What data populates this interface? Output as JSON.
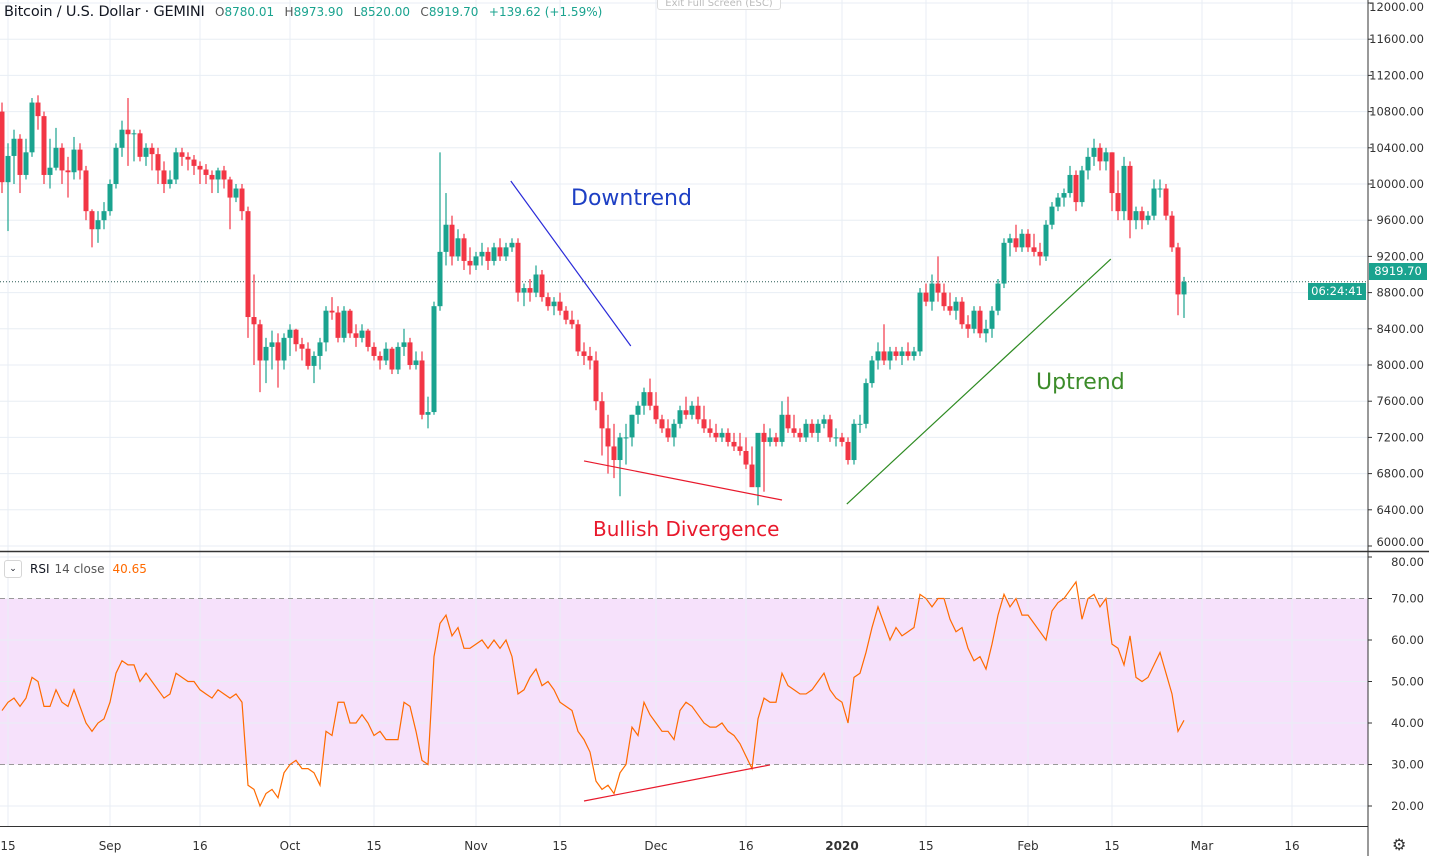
{
  "header": {
    "symbol": "Bitcoin / U.S. Dollar · GEMINI",
    "o_label": "O",
    "o_value": "8780.01",
    "h_label": "H",
    "h_value": "8973.90",
    "l_label": "L",
    "l_value": "8520.00",
    "c_label": "C",
    "c_value": "8919.70",
    "change": "+139.62 (+1.59%)"
  },
  "exit_fullscreen_label": "Exit Full Screen (ESC)",
  "price_tag": "8919.70",
  "countdown_tag": "06:24:41",
  "rsi_legend": {
    "name": "RSI",
    "params": "14 close",
    "value": "40.65"
  },
  "annotations": {
    "downtrend": "Downtrend",
    "bullish_divergence": "Bullish Divergence",
    "uptrend": "Uptrend"
  },
  "colors": {
    "up": "#1aa38f",
    "down": "#f23645",
    "rsi_line": "#ff6a00",
    "rsi_band": "#f6e1fb",
    "downtrend": "#2b2bd9",
    "divergence": "#e8192c",
    "uptrend": "#2e8b22",
    "grid": "#e8eef4"
  },
  "icons": {
    "rsi_collapse": "chevron-down-icon",
    "settings": "gear-icon"
  },
  "chart_data": [
    {
      "type": "candlestick",
      "interval": "1D",
      "first_date": "2019-08-14",
      "ylim": [
        6000,
        12000
      ],
      "y_ticks": [
        "6000.00",
        "6400.00",
        "6800.00",
        "7200.00",
        "7600.00",
        "8000.00",
        "8400.00",
        "8800.00",
        "9200.00",
        "9600.00",
        "10000.00",
        "10400.00",
        "10800.00",
        "11200.00",
        "11600.00",
        "12000.00"
      ],
      "current_price": 8919.7,
      "x_ticks": [
        {
          "label": "15",
          "date": "2019-08-15"
        },
        {
          "label": "Sep",
          "date": "2019-09-01"
        },
        {
          "label": "16",
          "date": "2019-09-16"
        },
        {
          "label": "Oct",
          "date": "2019-10-01"
        },
        {
          "label": "15",
          "date": "2019-10-15"
        },
        {
          "label": "Nov",
          "date": "2019-11-01"
        },
        {
          "label": "15",
          "date": "2019-11-15"
        },
        {
          "label": "Dec",
          "date": "2019-12-01"
        },
        {
          "label": "16",
          "date": "2019-12-16"
        },
        {
          "label": "2020",
          "date": "2020-01-01"
        },
        {
          "label": "15",
          "date": "2020-01-15"
        },
        {
          "label": "Feb",
          "date": "2020-02-01"
        },
        {
          "label": "15",
          "date": "2020-02-15"
        },
        {
          "label": "Mar",
          "date": "2020-03-01"
        },
        {
          "label": "16",
          "date": "2020-03-16"
        }
      ],
      "first_open": 10800,
      "close": [
        10020,
        10310,
        10500,
        10100,
        10350,
        10900,
        10750,
        10100,
        10180,
        10400,
        10150,
        10130,
        10380,
        10150,
        9700,
        9500,
        9600,
        9700,
        10000,
        10400,
        10600,
        10550,
        10560,
        10300,
        10400,
        10330,
        10150,
        10000,
        10050,
        10350,
        10300,
        10270,
        10200,
        10160,
        10100,
        10050,
        10150,
        10050,
        9850,
        9950,
        9700,
        8530,
        8450,
        8050,
        8200,
        8250,
        8050,
        8300,
        8390,
        8230,
        8180,
        7990,
        8100,
        8250,
        8600,
        8580,
        8300,
        8600,
        8350,
        8300,
        8380,
        8200,
        8100,
        8050,
        8180,
        7950,
        8200,
        8250,
        8000,
        8050,
        7450,
        7480,
        8650,
        9250,
        9550,
        9200,
        9400,
        9150,
        9100,
        9200,
        9250,
        9150,
        9300,
        9200,
        9300,
        9350,
        8800,
        8850,
        8800,
        9000,
        8750,
        8650,
        8700,
        8600,
        8500,
        8450,
        8150,
        8100,
        8050,
        7600,
        7300,
        7100,
        6950,
        7200,
        7200,
        7450,
        7550,
        7700,
        7550,
        7400,
        7300,
        7200,
        7350,
        7500,
        7450,
        7550,
        7400,
        7300,
        7250,
        7200,
        7250,
        7150,
        7100,
        7050,
        6900,
        6650,
        7250,
        7150,
        7200,
        7150,
        7450,
        7300,
        7250,
        7200,
        7350,
        7250,
        7350,
        7400,
        7200,
        7200,
        7150,
        6950,
        7350,
        7350,
        7800,
        8050,
        8150,
        8050,
        8150,
        8100,
        8150,
        8100,
        8150,
        8800,
        8700,
        8900,
        8800,
        8650,
        8600,
        8700,
        8450,
        8400,
        8600,
        8350,
        8400,
        8600,
        8900,
        9350,
        9400,
        9300,
        9450,
        9300,
        9250,
        9200,
        9550,
        9750,
        9850,
        9900,
        10100,
        9800,
        10150,
        10300,
        10400,
        10250,
        10350,
        9900,
        9700,
        10200,
        9600,
        9700,
        9600,
        9650,
        9950,
        9950,
        9650,
        9300,
        8780,
        8919.7
      ],
      "high": [
        10900,
        10450,
        10600,
        10550,
        10500,
        10950,
        10980,
        10800,
        10500,
        10620,
        10450,
        10300,
        10520,
        10450,
        10200,
        9720,
        9700,
        9800,
        10050,
        10450,
        10700,
        10950,
        10600,
        10600,
        10450,
        10450,
        10400,
        10250,
        10150,
        10400,
        10400,
        10350,
        10320,
        10250,
        10220,
        10150,
        10180,
        10200,
        10080,
        10000,
        10000,
        9750,
        9000,
        8500,
        8300,
        8380,
        8350,
        8350,
        8450,
        8400,
        8300,
        8250,
        8150,
        8300,
        8650,
        8750,
        8650,
        8650,
        8620,
        8450,
        8450,
        8400,
        8250,
        8150,
        8250,
        8200,
        8250,
        8400,
        8300,
        8150,
        8150,
        7650,
        8700,
        10350,
        9900,
        9650,
        9500,
        9450,
        9300,
        9250,
        9350,
        9300,
        9350,
        9400,
        9350,
        9400,
        9400,
        8900,
        8950,
        9100,
        9050,
        8800,
        8750,
        8800,
        8650,
        8600,
        8500,
        8250,
        8200,
        8150,
        7700,
        7450,
        7350,
        7250,
        7350,
        7450,
        7600,
        7750,
        7850,
        7700,
        7450,
        7400,
        7400,
        7550,
        7650,
        7600,
        7650,
        7550,
        7400,
        7350,
        7300,
        7300,
        7250,
        7250,
        7200,
        7100,
        6950,
        7350,
        7300,
        7250,
        7600,
        7650,
        7450,
        7300,
        7400,
        7400,
        7400,
        7450,
        7450,
        7300,
        7250,
        7200,
        7400,
        7450,
        7850,
        8100,
        8250,
        8450,
        8200,
        8200,
        8200,
        8250,
        8200,
        8850,
        8900,
        9000,
        9200,
        8900,
        8800,
        8750,
        8750,
        8550,
        8650,
        8650,
        8500,
        8650,
        8950,
        9400,
        9450,
        9550,
        9500,
        9500,
        9450,
        9350,
        9600,
        9800,
        9900,
        9950,
        10200,
        10150,
        10200,
        10400,
        10500,
        10450,
        10400,
        10350,
        10150,
        10300,
        10250,
        9750,
        9750,
        9700,
        10050,
        10050,
        10000,
        9700,
        9350,
        8973.9
      ],
      "low": [
        9900,
        9480,
        10000,
        9900,
        10050,
        10300,
        10600,
        10000,
        9950,
        10150,
        10000,
        9850,
        10050,
        10050,
        9600,
        9300,
        9350,
        9500,
        9650,
        9950,
        10300,
        10200,
        10250,
        10250,
        10200,
        10150,
        10000,
        9900,
        9950,
        10000,
        10200,
        10150,
        10100,
        10000,
        10000,
        9900,
        9900,
        9950,
        9500,
        9800,
        9600,
        8300,
        8000,
        7700,
        7800,
        7950,
        7750,
        7950,
        8100,
        8150,
        8050,
        7950,
        7800,
        7950,
        8150,
        8500,
        8250,
        8250,
        8300,
        8200,
        8250,
        8150,
        8050,
        7950,
        8000,
        7900,
        7900,
        8100,
        7950,
        7950,
        7400,
        7300,
        7450,
        8600,
        9100,
        9100,
        9150,
        9050,
        9000,
        9050,
        9100,
        9050,
        9100,
        9150,
        9150,
        9250,
        8700,
        8650,
        8700,
        8750,
        8700,
        8600,
        8550,
        8550,
        8450,
        8400,
        8100,
        8000,
        7950,
        7500,
        7000,
        6800,
        6750,
        6550,
        6900,
        7100,
        7350,
        7450,
        7500,
        7350,
        7250,
        7150,
        7100,
        7300,
        7400,
        7400,
        7350,
        7250,
        7200,
        7150,
        7150,
        7100,
        7050,
        7000,
        6850,
        6800,
        6450,
        6600,
        7100,
        7100,
        7100,
        7250,
        7200,
        7150,
        7150,
        7200,
        7150,
        7300,
        7150,
        7100,
        7100,
        6900,
        6900,
        7250,
        7300,
        7750,
        7950,
        8000,
        7950,
        8050,
        8000,
        8050,
        8050,
        8100,
        8650,
        8600,
        8700,
        8600,
        8550,
        8500,
        8400,
        8300,
        8350,
        8300,
        8250,
        8300,
        8550,
        8850,
        9200,
        9250,
        9250,
        9250,
        9200,
        9100,
        9150,
        9500,
        9700,
        9750,
        9850,
        9700,
        9750,
        10050,
        10200,
        10150,
        10150,
        9700,
        9600,
        9600,
        9400,
        9500,
        9500,
        9550,
        9600,
        9850,
        9600,
        9250,
        8550,
        8520.0
      ],
      "trendlines": [
        {
          "name": "downtrend",
          "from": {
            "day": 84.8,
            "price": 10033
          },
          "to": {
            "day": 104.8,
            "price": 8210
          }
        },
        {
          "name": "bullish-divergence-price",
          "from": {
            "day": 97.0,
            "price": 6940
          },
          "to": {
            "day": 130.0,
            "price": 6508
          }
        },
        {
          "name": "uptrend",
          "from": {
            "day": 140.8,
            "price": 6464
          },
          "to": {
            "day": 184.8,
            "price": 9170
          }
        }
      ]
    },
    {
      "type": "line",
      "series": [
        {
          "name": "RSI 14 close",
          "values": [
            43,
            45,
            46,
            44,
            46,
            51,
            50,
            44,
            44,
            48,
            45,
            44,
            48,
            44,
            40,
            38,
            40,
            41,
            45,
            52,
            55,
            54,
            54,
            50,
            52,
            50,
            48,
            46,
            47,
            52,
            51,
            50,
            50,
            48,
            47,
            46,
            48,
            47,
            46,
            47,
            45,
            25,
            24,
            20,
            23,
            24,
            22,
            28,
            30,
            31,
            29,
            29,
            28,
            25,
            38,
            37,
            45,
            45,
            40,
            40,
            42,
            40,
            37,
            38,
            36,
            36,
            36,
            45,
            44,
            38,
            31,
            30,
            56,
            64,
            66,
            61,
            63,
            58,
            58,
            59,
            60,
            58,
            60,
            58,
            60,
            56,
            47,
            48,
            51,
            53,
            49,
            50,
            48,
            45,
            44,
            43,
            38,
            36,
            33,
            26,
            24,
            25,
            23,
            28,
            30,
            39,
            37,
            45,
            42,
            40,
            38,
            38,
            36,
            43,
            45,
            44,
            42,
            40,
            39,
            39,
            40,
            38,
            37,
            35,
            32,
            29,
            41,
            46,
            45,
            45,
            52,
            49,
            48,
            47,
            47,
            48,
            50,
            52,
            48,
            46,
            45,
            40,
            51,
            52,
            57,
            63,
            68,
            64,
            60,
            63,
            61,
            62,
            63,
            71,
            70,
            68,
            70,
            70,
            65,
            62,
            63,
            58,
            55,
            56,
            53,
            59,
            66,
            71,
            68,
            70,
            66,
            66,
            64,
            62,
            60,
            67,
            69,
            70,
            72,
            74,
            65,
            70,
            71,
            68,
            70,
            59,
            58,
            54,
            61,
            51,
            50,
            51,
            54,
            57,
            52,
            47,
            38,
            40.65
          ]
        }
      ],
      "ylim": [
        15,
        80
      ],
      "y_ticks": [
        "20.00",
        "30.00",
        "40.00",
        "50.00",
        "60.00",
        "70.00",
        "80.00"
      ],
      "bands": {
        "upper": 70,
        "lower": 30
      },
      "trendlines": [
        {
          "name": "bullish-divergence-rsi",
          "from": {
            "day": 97.0,
            "value": 21.2
          },
          "to": {
            "day": 128.0,
            "value": 29.9
          }
        }
      ]
    }
  ]
}
